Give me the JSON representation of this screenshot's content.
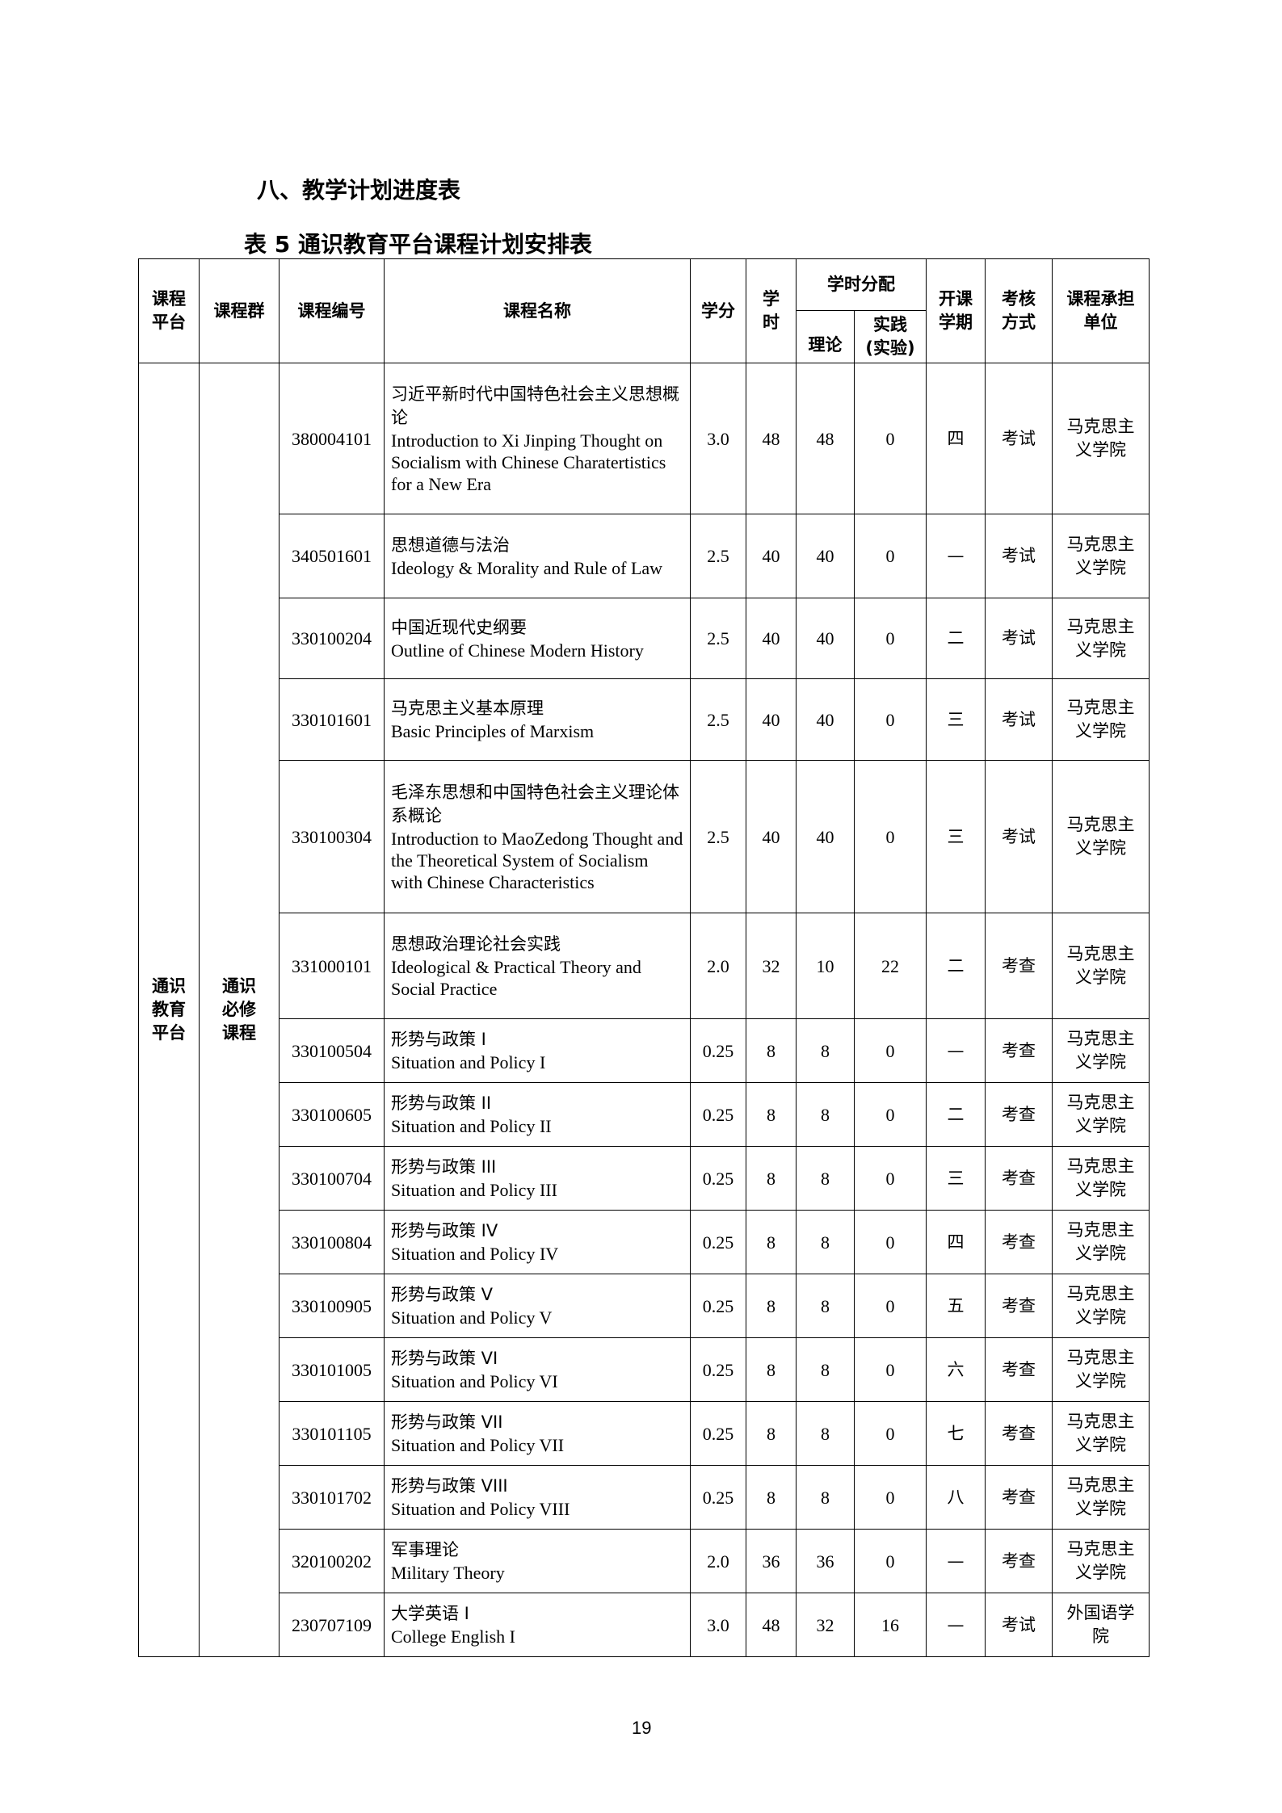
{
  "section_heading": "八、教学计划进度表",
  "table_title": "表 5  通识教育平台课程计划安排表",
  "headers": {
    "platform": "课程平台",
    "group": "课程群",
    "code": "课程编号",
    "name": "课程名称",
    "credit": "学分",
    "hours": "学时",
    "distribution": "学时分配",
    "theory": "理论",
    "practice": "实践(实验)",
    "semester": "开课学期",
    "assessment": "考核方式",
    "unit": "课程承担单位"
  },
  "platform": "通识教育平台",
  "group": "通识必修课程",
  "rows": [
    {
      "code": "380004101",
      "zh": "习近平新时代中国特色社会主义思想概论",
      "en": "Introduction to Xi Jinping Thought on Socialism with Chinese Charatertistics for a New Era",
      "credit": "3.0",
      "hours": "48",
      "theory": "48",
      "practice": "0",
      "semester": "四",
      "assessment": "考试",
      "unit": "马克思主义学院"
    },
    {
      "code": "340501601",
      "zh": "思想道德与法治",
      "en": "Ideology & Morality and Rule of Law",
      "credit": "2.5",
      "hours": "40",
      "theory": "40",
      "practice": "0",
      "semester": "—",
      "assessment": "考试",
      "unit": "马克思主义学院"
    },
    {
      "code": "330100204",
      "zh": "中国近现代史纲要",
      "en": "Outline of Chinese Modern History",
      "credit": "2.5",
      "hours": "40",
      "theory": "40",
      "practice": "0",
      "semester": "二",
      "assessment": "考试",
      "unit": "马克思主义学院"
    },
    {
      "code": "330101601",
      "zh": "马克思主义基本原理",
      "en": "Basic Principles of Marxism",
      "credit": "2.5",
      "hours": "40",
      "theory": "40",
      "practice": "0",
      "semester": "三",
      "assessment": "考试",
      "unit": "马克思主义学院"
    },
    {
      "code": "330100304",
      "zh": "毛泽东思想和中国特色社会主义理论体系概论",
      "en": "Introduction to MaoZedong Thought and the Theoretical System of Socialism with Chinese Characteristics",
      "credit": "2.5",
      "hours": "40",
      "theory": "40",
      "practice": "0",
      "semester": "三",
      "assessment": "考试",
      "unit": "马克思主义学院"
    },
    {
      "code": "331000101",
      "zh": "思想政治理论社会实践",
      "en": "Ideological & Practical Theory and Social Practice",
      "credit": "2.0",
      "hours": "32",
      "theory": "10",
      "practice": "22",
      "semester": "二",
      "assessment": "考查",
      "unit": "马克思主义学院"
    },
    {
      "code": "330100504",
      "zh": "形势与政策 I",
      "en": "Situation and Policy I",
      "credit": "0.25",
      "hours": "8",
      "theory": "8",
      "practice": "0",
      "semester": "—",
      "assessment": "考查",
      "unit": "马克思主义学院"
    },
    {
      "code": "330100605",
      "zh": "形势与政策 II",
      "en": "Situation and Policy II",
      "credit": "0.25",
      "hours": "8",
      "theory": "8",
      "practice": "0",
      "semester": "二",
      "assessment": "考查",
      "unit": "马克思主义学院"
    },
    {
      "code": "330100704",
      "zh": "形势与政策 III",
      "en": "Situation and Policy III",
      "credit": "0.25",
      "hours": "8",
      "theory": "8",
      "practice": "0",
      "semester": "三",
      "assessment": "考查",
      "unit": "马克思主义学院"
    },
    {
      "code": "330100804",
      "zh": "形势与政策 IV",
      "en": "Situation and Policy IV",
      "credit": "0.25",
      "hours": "8",
      "theory": "8",
      "practice": "0",
      "semester": "四",
      "assessment": "考查",
      "unit": "马克思主义学院"
    },
    {
      "code": "330100905",
      "zh": "形势与政策 V",
      "en": "Situation and Policy V",
      "credit": "0.25",
      "hours": "8",
      "theory": "8",
      "practice": "0",
      "semester": "五",
      "assessment": "考查",
      "unit": "马克思主义学院"
    },
    {
      "code": "330101005",
      "zh": "形势与政策 VI",
      "en": "Situation and Policy VI",
      "credit": "0.25",
      "hours": "8",
      "theory": "8",
      "practice": "0",
      "semester": "六",
      "assessment": "考查",
      "unit": "马克思主义学院"
    },
    {
      "code": "330101105",
      "zh": "形势与政策 VII",
      "en": "Situation and Policy VII",
      "credit": "0.25",
      "hours": "8",
      "theory": "8",
      "practice": "0",
      "semester": "七",
      "assessment": "考查",
      "unit": "马克思主义学院"
    },
    {
      "code": "330101702",
      "zh": "形势与政策 VIII",
      "en": "Situation and Policy VIII",
      "credit": "0.25",
      "hours": "8",
      "theory": "8",
      "practice": "0",
      "semester": "八",
      "assessment": "考查",
      "unit": "马克思主义学院"
    },
    {
      "code": "320100202",
      "zh": "军事理论",
      "en": "Military Theory",
      "credit": "2.0",
      "hours": "36",
      "theory": "36",
      "practice": "0",
      "semester": "—",
      "assessment": "考查",
      "unit": "马克思主义学院"
    },
    {
      "code": "230707109",
      "zh": "大学英语 I",
      "en": "College English I",
      "credit": "3.0",
      "hours": "48",
      "theory": "32",
      "practice": "16",
      "semester": "—",
      "assessment": "考试",
      "unit": "外国语学院"
    }
  ],
  "page_number": "19"
}
